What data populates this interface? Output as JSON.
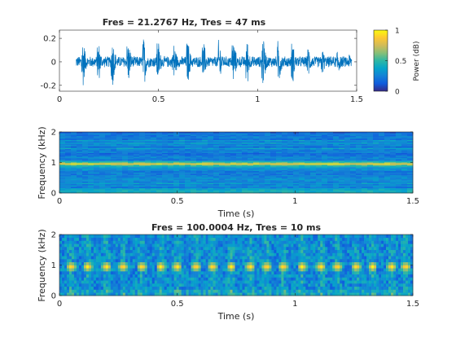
{
  "chart_data": [
    {
      "type": "line",
      "title": "Fres = 21.2767 Hz, Tres = 47 ms",
      "xlabel": "",
      "ylabel": "",
      "xlim": [
        0,
        1.5
      ],
      "ylim": [
        -0.25,
        0.27
      ],
      "x_ticks": [
        0,
        0.5,
        1,
        1.5
      ],
      "x_tick_labels": [
        "0",
        "0.5",
        "1",
        "1.5"
      ],
      "y_ticks": [
        -0.2,
        0,
        0.2
      ],
      "y_tick_labels": [
        "-0.2",
        "0",
        "0.2"
      ],
      "grid": false,
      "color": "#0072bd",
      "bursts": {
        "times": [
          0.05,
          0.12,
          0.2,
          0.27,
          0.35,
          0.43,
          0.5,
          0.58,
          0.65,
          0.73,
          0.81,
          0.88,
          0.95,
          1.03,
          1.11,
          1.18,
          1.26,
          1.33,
          1.41,
          1.47
        ],
        "amplitudes": [
          0.18,
          0.24,
          0.18,
          0.24,
          0.2,
          0.22,
          0.2,
          0.2,
          0.2,
          0.18,
          0.2,
          0.22,
          0.2,
          0.24,
          0.2,
          0.18,
          0.14,
          0.12,
          0.12,
          0.08
        ],
        "noise_amplitude": 0.05
      }
    },
    {
      "type": "heatmap",
      "title": "",
      "xlabel": "Time (s)",
      "ylabel": "Frequency (kHz)",
      "xlim": [
        0,
        1.5
      ],
      "ylim": [
        0,
        2
      ],
      "x_ticks": [
        0,
        0.5,
        1,
        1.5
      ],
      "x_tick_labels": [
        "0",
        "0.5",
        "1",
        "1.5"
      ],
      "y_ticks": [
        0,
        1,
        2
      ],
      "y_tick_labels": [
        "0",
        "1",
        "2"
      ],
      "frequency_resolution_hz": 21.2767,
      "time_resolution_ms": 47,
      "dominant_frequency_khz": 0.95,
      "dominant_band_level": 0.88,
      "background_level": 0.18
    },
    {
      "type": "heatmap",
      "title": "Fres = 100.0004 Hz, Tres = 10 ms",
      "xlabel": "Time (s)",
      "ylabel": "Frequency (kHz)",
      "xlim": [
        0,
        1.5
      ],
      "ylim": [
        0,
        2
      ],
      "x_ticks": [
        0,
        0.5,
        1,
        1.5
      ],
      "x_tick_labels": [
        "0",
        "0.5",
        "1",
        "1.5"
      ],
      "y_ticks": [
        0,
        1,
        2
      ],
      "y_tick_labels": [
        "0",
        "1",
        "2"
      ],
      "frequency_resolution_hz": 100.0004,
      "time_resolution_ms": 10,
      "pulse_times": [
        0.05,
        0.12,
        0.2,
        0.27,
        0.35,
        0.43,
        0.5,
        0.58,
        0.65,
        0.73,
        0.81,
        0.88,
        0.95,
        1.03,
        1.11,
        1.18,
        1.26,
        1.33,
        1.41,
        1.47
      ],
      "pulse_frequency_khz": 0.9,
      "background_level": 0.28
    }
  ],
  "colorbar": {
    "label": "Power (dB)",
    "ticks": [
      0,
      0.5,
      1
    ],
    "tick_labels": [
      "0",
      "0.5",
      "1"
    ],
    "range": [
      0,
      1
    ],
    "colormap": "parula"
  }
}
